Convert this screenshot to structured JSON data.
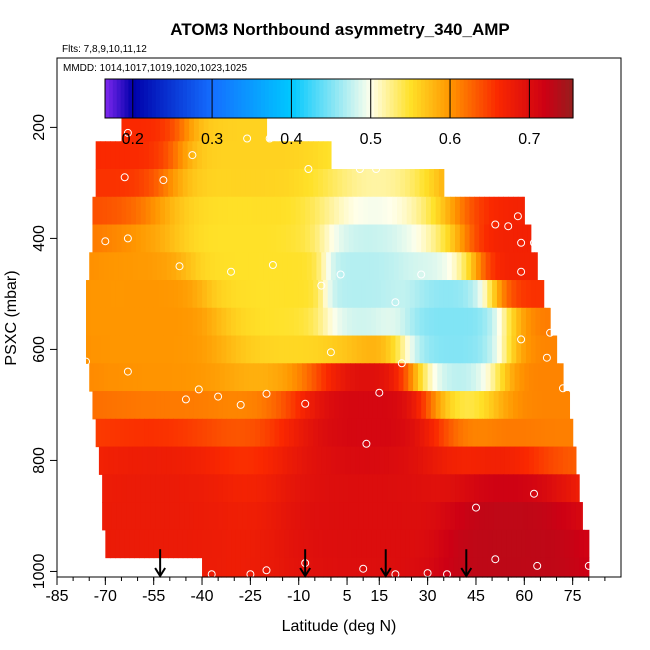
{
  "chart_data": {
    "type": "heatmap",
    "title": "ATOM3 Northbound asymmetry_340_AMP",
    "subtitle_flights": "Flts: 7,8,9,10,11,12",
    "subtitle_dates": "MMDD: 1014,1017,1019,1020,1023,1025",
    "xlabel": "Latitude (deg N)",
    "ylabel": "PSXC (mbar)",
    "xlim": [
      -85,
      90
    ],
    "ylim": [
      1010,
      75
    ],
    "x_ticks": [
      -85,
      -70,
      -55,
      -40,
      -25,
      -10,
      5,
      15,
      30,
      45,
      60,
      75
    ],
    "x_tick_labels": [
      "-85",
      "-70",
      "-55",
      "-40",
      "-25",
      "-10",
      "5",
      "15",
      "30",
      "45",
      "60",
      "75"
    ],
    "y_ticks": [
      200,
      400,
      600,
      800,
      1000
    ],
    "y_tick_labels": [
      "200",
      "400",
      "600",
      "800",
      "1000"
    ],
    "colorbar": {
      "range": [
        0.165,
        0.755
      ],
      "ticks": [
        0.2,
        0.3,
        0.4,
        0.5,
        0.6,
        0.7
      ],
      "tick_labels": [
        "0.2",
        "0.3",
        "0.4",
        "0.5",
        "0.6",
        "0.7"
      ]
    },
    "pressure_levels": [
      200,
      250,
      300,
      350,
      400,
      450,
      500,
      550,
      600,
      650,
      700,
      750,
      800,
      850,
      900,
      950,
      1000
    ],
    "lat_extent_per_level": [
      [
        -65,
        -20
      ],
      [
        -73,
        0
      ],
      [
        -73,
        35
      ],
      [
        -74,
        60
      ],
      [
        -74,
        62
      ],
      [
        -75,
        64
      ],
      [
        -76,
        66
      ],
      [
        -76,
        68
      ],
      [
        -76,
        70
      ],
      [
        -75,
        72
      ],
      [
        -74,
        74
      ],
      [
        -73,
        75
      ],
      [
        -72,
        76
      ],
      [
        -71,
        77
      ],
      [
        -71,
        78
      ],
      [
        -70,
        80
      ],
      [
        -40,
        80
      ]
    ],
    "field_model": [
      {
        "lat": -66,
        "p": 200,
        "value": 0.66
      },
      {
        "lat": -55,
        "p": 550,
        "value": 0.6
      },
      {
        "lat": -55,
        "p": 900,
        "value": 0.68
      },
      {
        "lat": -28,
        "p": 400,
        "value": 0.55
      },
      {
        "lat": -25,
        "p": 250,
        "value": 0.56
      },
      {
        "lat": -12,
        "p": 480,
        "value": 0.55
      },
      {
        "lat": 8,
        "p": 480,
        "value": 0.47
      },
      {
        "lat": 38,
        "p": 560,
        "value": 0.45
      },
      {
        "lat": 12,
        "p": 720,
        "value": 0.71
      },
      {
        "lat": 12,
        "p": 900,
        "value": 0.7
      },
      {
        "lat": 55,
        "p": 960,
        "value": 0.73
      },
      {
        "lat": 60,
        "p": 420,
        "value": 0.67
      },
      {
        "lat": 72,
        "p": 650,
        "value": 0.61
      }
    ],
    "observation_points": [
      {
        "lat": -63,
        "p": 210
      },
      {
        "lat": -75,
        "p": 240
      },
      {
        "lat": -64,
        "p": 290
      },
      {
        "lat": -52,
        "p": 295
      },
      {
        "lat": -43,
        "p": 250
      },
      {
        "lat": -26,
        "p": 220
      },
      {
        "lat": -19,
        "p": 220
      },
      {
        "lat": -12,
        "p": 195
      },
      {
        "lat": -76,
        "p": 340
      },
      {
        "lat": -70,
        "p": 405
      },
      {
        "lat": -63,
        "p": 400
      },
      {
        "lat": -47,
        "p": 450
      },
      {
        "lat": -31,
        "p": 460
      },
      {
        "lat": -18,
        "p": 448
      },
      {
        "lat": -7,
        "p": 275
      },
      {
        "lat": 9,
        "p": 275
      },
      {
        "lat": 14,
        "p": 275
      },
      {
        "lat": -3,
        "p": 485
      },
      {
        "lat": 3,
        "p": 465
      },
      {
        "lat": 20,
        "p": 515
      },
      {
        "lat": 28,
        "p": 465
      },
      {
        "lat": 51,
        "p": 375
      },
      {
        "lat": 55,
        "p": 378
      },
      {
        "lat": 58,
        "p": 360
      },
      {
        "lat": 59,
        "p": 408
      },
      {
        "lat": 63,
        "p": 408
      },
      {
        "lat": 67,
        "p": 330
      },
      {
        "lat": 72,
        "p": 410
      },
      {
        "lat": 59,
        "p": 460
      },
      {
        "lat": 69,
        "p": 520
      },
      {
        "lat": 68,
        "p": 570
      },
      {
        "lat": 59,
        "p": 582
      },
      {
        "lat": 67,
        "p": 615
      },
      {
        "lat": -76,
        "p": 622
      },
      {
        "lat": -63,
        "p": 640
      },
      {
        "lat": -41,
        "p": 672
      },
      {
        "lat": -45,
        "p": 690
      },
      {
        "lat": -35,
        "p": 685
      },
      {
        "lat": -20,
        "p": 680
      },
      {
        "lat": -28,
        "p": 700
      },
      {
        "lat": -8,
        "p": 698
      },
      {
        "lat": 0,
        "p": 605
      },
      {
        "lat": 22,
        "p": 625
      },
      {
        "lat": 15,
        "p": 678
      },
      {
        "lat": 72,
        "p": 670
      },
      {
        "lat": 75,
        "p": 672
      },
      {
        "lat": 11,
        "p": 770
      },
      {
        "lat": 45,
        "p": 885
      },
      {
        "lat": 63,
        "p": 860
      },
      {
        "lat": -72,
        "p": 958
      },
      {
        "lat": -37,
        "p": 1005
      },
      {
        "lat": -25,
        "p": 1005
      },
      {
        "lat": -20,
        "p": 998
      },
      {
        "lat": -8,
        "p": 985
      },
      {
        "lat": 10,
        "p": 995
      },
      {
        "lat": 20,
        "p": 1005
      },
      {
        "lat": 30,
        "p": 1003
      },
      {
        "lat": 36,
        "p": 1005
      },
      {
        "lat": 51,
        "p": 978
      },
      {
        "lat": 64,
        "p": 990
      },
      {
        "lat": 80,
        "p": 990
      }
    ],
    "arrow_markers": [
      {
        "lat": -53,
        "p": 960
      },
      {
        "lat": -8,
        "p": 960
      },
      {
        "lat": 17,
        "p": 960
      },
      {
        "lat": 42,
        "p": 960
      }
    ]
  }
}
